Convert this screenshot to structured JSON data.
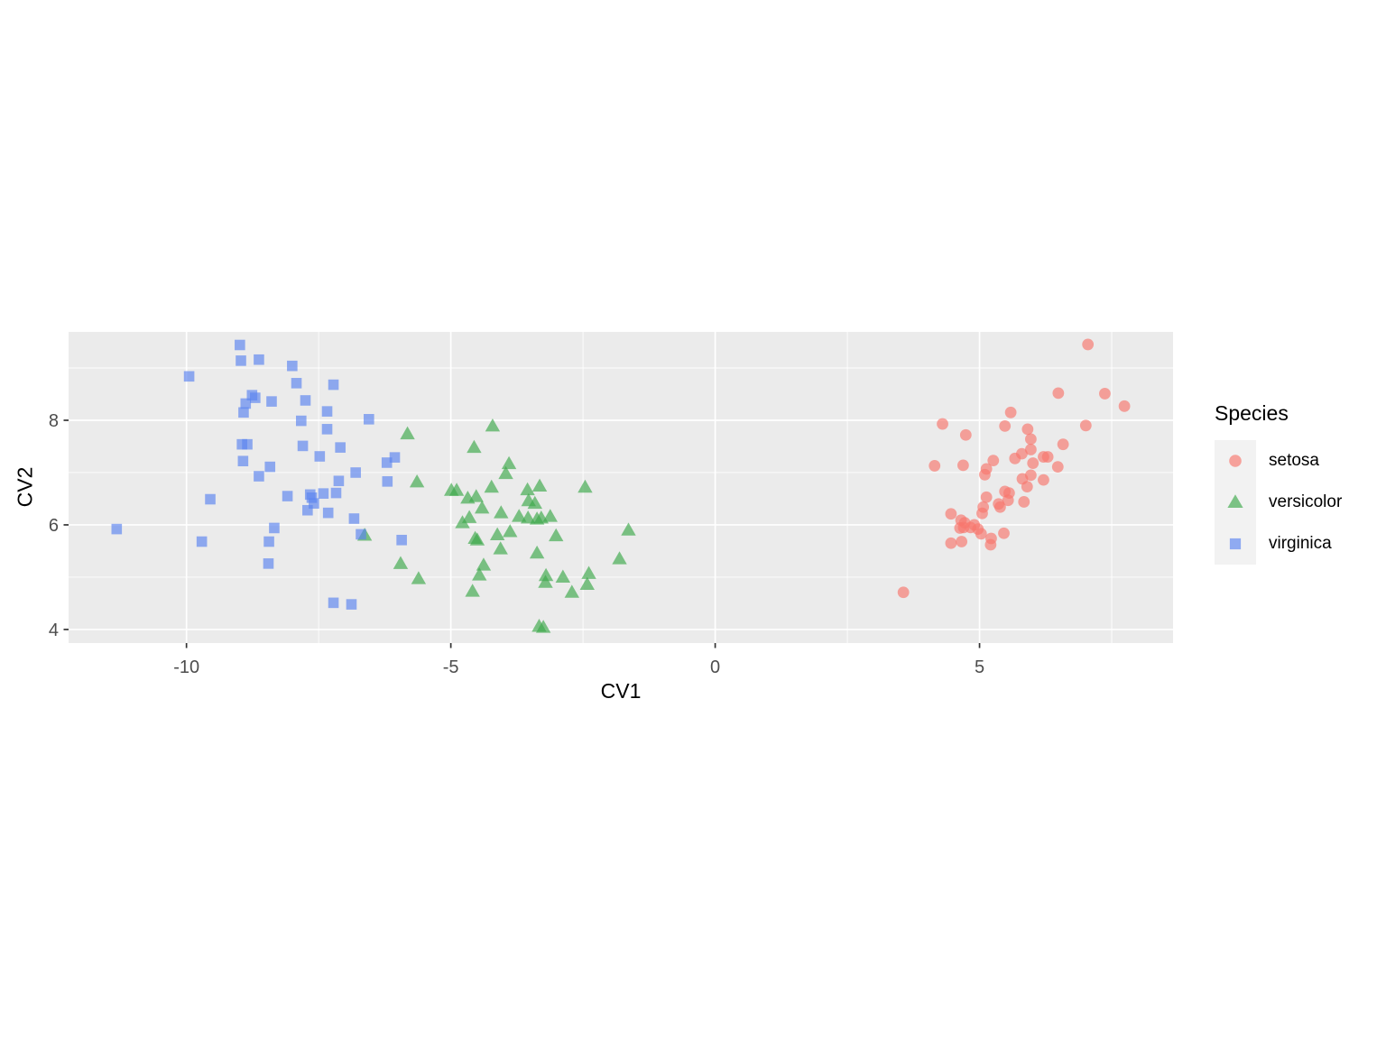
{
  "chart_data": {
    "type": "scatter",
    "title": "",
    "xlabel": "CV1",
    "ylabel": "CV2",
    "legend_title": "Species",
    "legend_position": "right",
    "grid": "major and minor white gridlines on grey panel",
    "panel_bg": "#EBEBEB",
    "legend_key_bg": "#F2F2F2",
    "tick_label_color": "#4D4D4D",
    "tick_mark_color": "#333333",
    "xlim": [
      -12.23,
      8.66
    ],
    "ylim": [
      3.74,
      9.69
    ],
    "x_tick_values": [
      -10,
      -5,
      0,
      5
    ],
    "x_tick_labels": [
      "-10",
      "-5",
      "0",
      "5"
    ],
    "y_tick_values": [
      8,
      6,
      4
    ],
    "y_tick_labels": [
      "8",
      "6",
      "4"
    ],
    "x_minor_values": [
      -7.5,
      -2.5,
      2.5,
      7.5
    ],
    "y_minor_values": [
      9,
      7,
      5
    ],
    "point_alpha": 0.66,
    "series": [
      {
        "name": "setosa",
        "shape": "circle",
        "color": "#F8766D",
        "points": [
          [
            7.05,
            9.45
          ],
          [
            6.49,
            8.52
          ],
          [
            7.37,
            8.51
          ],
          [
            7.74,
            8.27
          ],
          [
            5.59,
            8.15
          ],
          [
            4.3,
            7.93
          ],
          [
            5.48,
            7.89
          ],
          [
            4.74,
            7.72
          ],
          [
            5.91,
            7.83
          ],
          [
            7.01,
            7.9
          ],
          [
            5.97,
            7.64
          ],
          [
            6.58,
            7.54
          ],
          [
            5.97,
            7.44
          ],
          [
            5.8,
            7.36
          ],
          [
            5.67,
            7.27
          ],
          [
            6.21,
            7.3
          ],
          [
            6.29,
            7.3
          ],
          [
            5.26,
            7.23
          ],
          [
            4.15,
            7.13
          ],
          [
            4.69,
            7.14
          ],
          [
            6.01,
            7.18
          ],
          [
            6.48,
            7.11
          ],
          [
            5.13,
            7.07
          ],
          [
            5.1,
            6.96
          ],
          [
            5.81,
            6.88
          ],
          [
            5.97,
            6.95
          ],
          [
            6.21,
            6.86
          ],
          [
            5.9,
            6.73
          ],
          [
            5.56,
            6.61
          ],
          [
            5.48,
            6.64
          ],
          [
            5.13,
            6.53
          ],
          [
            5.84,
            6.44
          ],
          [
            5.54,
            6.47
          ],
          [
            5.36,
            6.4
          ],
          [
            5.39,
            6.34
          ],
          [
            5.07,
            6.34
          ],
          [
            5.05,
            6.22
          ],
          [
            4.46,
            6.21
          ],
          [
            4.65,
            6.09
          ],
          [
            4.72,
            6.04
          ],
          [
            4.9,
            6.0
          ],
          [
            4.63,
            5.94
          ],
          [
            4.7,
            5.95
          ],
          [
            4.83,
            5.95
          ],
          [
            4.97,
            5.92
          ],
          [
            5.03,
            5.83
          ],
          [
            5.46,
            5.84
          ],
          [
            5.22,
            5.74
          ],
          [
            4.66,
            5.68
          ],
          [
            4.46,
            5.65
          ],
          [
            5.21,
            5.62
          ],
          [
            3.56,
            4.71
          ]
        ]
      },
      {
        "name": "versicolor",
        "shape": "triangle",
        "color": "#3CA94B",
        "points": [
          [
            -4.21,
            7.89
          ],
          [
            -5.82,
            7.74
          ],
          [
            -4.56,
            7.48
          ],
          [
            -3.9,
            7.17
          ],
          [
            -3.96,
            6.98
          ],
          [
            -5.64,
            6.82
          ],
          [
            -4.99,
            6.66
          ],
          [
            -4.89,
            6.66
          ],
          [
            -4.68,
            6.51
          ],
          [
            -4.52,
            6.54
          ],
          [
            -4.23,
            6.72
          ],
          [
            -3.55,
            6.67
          ],
          [
            -3.32,
            6.74
          ],
          [
            -3.53,
            6.46
          ],
          [
            -3.41,
            6.41
          ],
          [
            -4.41,
            6.32
          ],
          [
            -4.05,
            6.23
          ],
          [
            -2.46,
            6.72
          ],
          [
            -4.65,
            6.14
          ],
          [
            -3.71,
            6.16
          ],
          [
            -3.54,
            6.13
          ],
          [
            -3.37,
            6.11
          ],
          [
            -3.29,
            6.13
          ],
          [
            -3.12,
            6.16
          ],
          [
            -4.78,
            6.04
          ],
          [
            -4.54,
            5.74
          ],
          [
            -4.5,
            5.71
          ],
          [
            -4.12,
            5.81
          ],
          [
            -3.88,
            5.87
          ],
          [
            -4.06,
            5.54
          ],
          [
            -3.01,
            5.79
          ],
          [
            -3.37,
            5.46
          ],
          [
            -1.64,
            5.9
          ],
          [
            -1.81,
            5.35
          ],
          [
            -5.95,
            5.26
          ],
          [
            -5.61,
            4.97
          ],
          [
            -4.38,
            5.23
          ],
          [
            -4.46,
            5.04
          ],
          [
            -4.59,
            4.73
          ],
          [
            -3.2,
            5.03
          ],
          [
            -3.21,
            4.9
          ],
          [
            -2.88,
            5.0
          ],
          [
            -2.71,
            4.71
          ],
          [
            -2.39,
            5.07
          ],
          [
            -2.42,
            4.86
          ],
          [
            -3.33,
            4.06
          ],
          [
            -3.25,
            4.04
          ],
          [
            -6.63,
            5.8
          ]
        ]
      },
      {
        "name": "virginica",
        "shape": "square",
        "color": "#5B84F0",
        "points": [
          [
            -8.99,
            9.44
          ],
          [
            -8.97,
            9.14
          ],
          [
            -8.63,
            9.16
          ],
          [
            -8.0,
            9.04
          ],
          [
            -9.95,
            8.84
          ],
          [
            -7.92,
            8.71
          ],
          [
            -7.22,
            8.68
          ],
          [
            -8.76,
            8.48
          ],
          [
            -8.7,
            8.43
          ],
          [
            -8.88,
            8.32
          ],
          [
            -8.39,
            8.36
          ],
          [
            -7.75,
            8.38
          ],
          [
            -8.92,
            8.15
          ],
          [
            -7.34,
            8.17
          ],
          [
            -6.55,
            8.02
          ],
          [
            -7.83,
            7.99
          ],
          [
            -7.34,
            7.83
          ],
          [
            -8.95,
            7.54
          ],
          [
            -8.85,
            7.54
          ],
          [
            -7.8,
            7.51
          ],
          [
            -7.09,
            7.48
          ],
          [
            -7.48,
            7.31
          ],
          [
            -8.93,
            7.22
          ],
          [
            -6.06,
            7.29
          ],
          [
            -6.21,
            7.19
          ],
          [
            -8.42,
            7.11
          ],
          [
            -6.8,
            7.0
          ],
          [
            -8.63,
            6.93
          ],
          [
            -6.2,
            6.83
          ],
          [
            -7.12,
            6.84
          ],
          [
            -8.09,
            6.55
          ],
          [
            -7.66,
            6.58
          ],
          [
            -7.41,
            6.6
          ],
          [
            -7.17,
            6.61
          ],
          [
            -7.63,
            6.52
          ],
          [
            -7.59,
            6.41
          ],
          [
            -9.55,
            6.49
          ],
          [
            -7.71,
            6.28
          ],
          [
            -7.32,
            6.23
          ],
          [
            -6.83,
            6.12
          ],
          [
            -11.32,
            5.92
          ],
          [
            -9.71,
            5.68
          ],
          [
            -8.44,
            5.68
          ],
          [
            -8.34,
            5.94
          ],
          [
            -8.45,
            5.26
          ],
          [
            -5.93,
            5.71
          ],
          [
            -6.7,
            5.82
          ],
          [
            -7.22,
            4.51
          ],
          [
            -6.88,
            4.48
          ]
        ]
      }
    ]
  }
}
